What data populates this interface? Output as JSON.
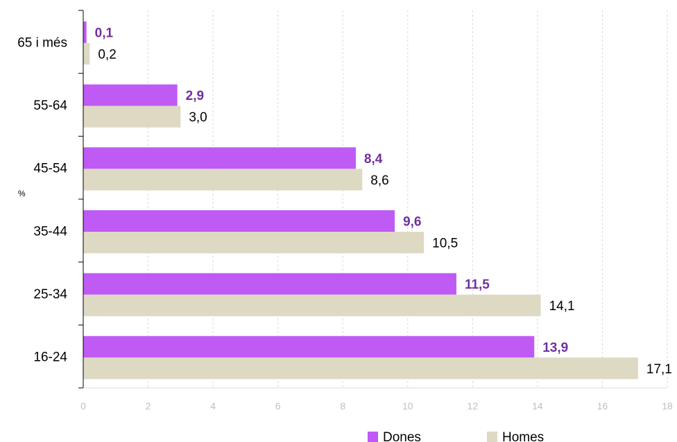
{
  "chart_data": {
    "type": "bar",
    "orientation": "horizontal",
    "categories": [
      "65 i més",
      "55-64",
      "45-54",
      "35-44",
      "25-34",
      "16-24"
    ],
    "series": [
      {
        "name": "Dones",
        "values": [
          0.1,
          2.9,
          8.4,
          9.6,
          11.5,
          13.9
        ],
        "labels": [
          "0,1",
          "2,9",
          "8,4",
          "9,6",
          "11,5",
          "13,9"
        ],
        "color": "#bf5af5",
        "label_color": "#7030a0"
      },
      {
        "name": "Homes",
        "values": [
          0.2,
          3.0,
          8.6,
          10.5,
          14.1,
          17.1
        ],
        "labels": [
          "0,2",
          "3,0",
          "8,6",
          "10,5",
          "14,1",
          "17,1"
        ],
        "color": "#ddd9c3",
        "label_color": "#000000"
      }
    ],
    "xlim": [
      0,
      18
    ],
    "xticks": [
      "0",
      "2",
      "4",
      "6",
      "8",
      "10",
      "12",
      "14",
      "16",
      "18"
    ],
    "ylabel": "%",
    "grid": "vertical dashed",
    "legend": "bottom"
  }
}
